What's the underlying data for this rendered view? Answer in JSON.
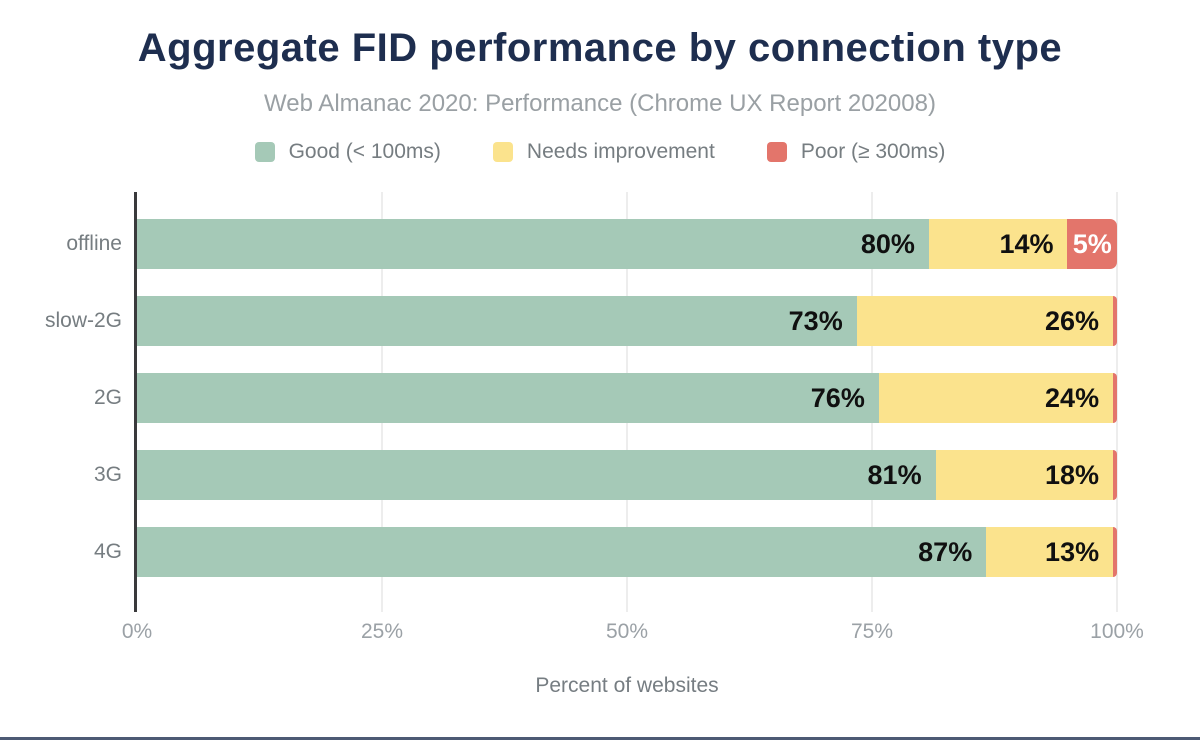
{
  "title": "Aggregate FID performance by connection type",
  "subtitle": "Web Almanac 2020: Performance (Chrome UX Report 202008)",
  "colors": {
    "good": "#a5c9b7",
    "needs_improvement": "#fbe38d",
    "poor": "#e3756b",
    "title_text": "#1e2e4f",
    "subtitle_text": "#9aa0a4",
    "axis_tick_text": "#9ba1a6",
    "category_text": "#767d81",
    "gridline": "#ededed",
    "axis_line": "#3a3a3c",
    "footer_accent": "#4d5a74"
  },
  "chart_data": {
    "type": "bar",
    "orientation": "horizontal",
    "stacked": true,
    "title": "Aggregate FID performance by connection type",
    "subtitle": "Web Almanac 2020: Performance (Chrome UX Report 202008)",
    "xlabel": "Percent of websites",
    "xlim": [
      0,
      100
    ],
    "grid": true,
    "legend_position": "top",
    "x_ticks": [
      {
        "label": "0%",
        "value": 0
      },
      {
        "label": "25%",
        "value": 25
      },
      {
        "label": "50%",
        "value": 50
      },
      {
        "label": "75%",
        "value": 75
      },
      {
        "label": "100%",
        "value": 100
      }
    ],
    "categories": [
      "offline",
      "slow-2G",
      "2G",
      "3G",
      "4G"
    ],
    "series": [
      {
        "key": "good",
        "name": "Good (< 100ms)",
        "color": "#a5c9b7",
        "values": [
          80,
          73,
          76,
          81,
          87
        ],
        "labels": [
          "80%",
          "73%",
          "76%",
          "81%",
          "87%"
        ]
      },
      {
        "key": "needs-improvement",
        "name": "Needs improvement",
        "color": "#fbe38d",
        "values": [
          14,
          26,
          24,
          18,
          13
        ],
        "labels": [
          "14%",
          "26%",
          "24%",
          "18%",
          "13%"
        ]
      },
      {
        "key": "poor",
        "name": "Poor (≥ 300ms)",
        "color": "#e3756b",
        "values": [
          5,
          0.4,
          0.4,
          0.4,
          0.4
        ],
        "labels": [
          "5%",
          "",
          "",
          "",
          ""
        ]
      }
    ]
  }
}
